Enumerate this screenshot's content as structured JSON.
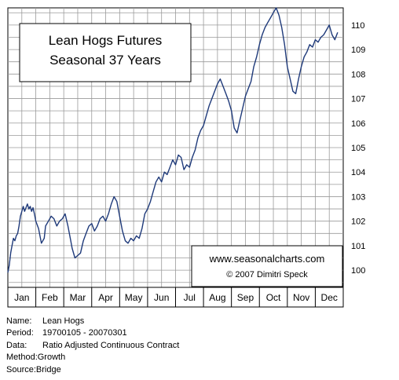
{
  "chart_data": {
    "type": "line",
    "title": [
      "Lean Hogs Futures",
      "Seasonal 37 Years"
    ],
    "watermark": [
      "www.seasonalcharts.com",
      "© 2007  Dimitri Speck"
    ],
    "x_categories": [
      "Jan",
      "Feb",
      "Mar",
      "Apr",
      "May",
      "Jun",
      "Jul",
      "Aug",
      "Sep",
      "Oct",
      "Nov",
      "Dec"
    ],
    "ylim": [
      99.3,
      110.7
    ],
    "y_ticks": [
      100,
      101,
      102,
      103,
      104,
      105,
      106,
      107,
      108,
      109,
      110
    ],
    "grid": true,
    "line_color": "#1f3a7a",
    "series": [
      {
        "x": [
          0.0,
          0.05,
          0.1,
          0.15,
          0.2,
          0.25,
          0.3,
          0.35,
          0.4,
          0.45,
          0.5,
          0.55,
          0.6,
          0.65,
          0.7,
          0.75,
          0.8,
          0.85,
          0.9,
          0.95,
          1.0,
          1.1,
          1.2,
          1.3,
          1.35,
          1.45,
          1.55,
          1.65,
          1.75,
          1.85,
          1.95,
          2.05,
          2.15,
          2.25,
          2.3,
          2.4,
          2.5,
          2.6,
          2.7,
          2.8,
          2.9,
          3.0,
          3.1,
          3.2,
          3.3,
          3.4,
          3.5,
          3.6,
          3.7,
          3.8,
          3.9,
          4.0,
          4.1,
          4.2,
          4.3,
          4.4,
          4.5,
          4.6,
          4.7,
          4.8,
          4.9,
          5.0,
          5.1,
          5.2,
          5.3,
          5.4,
          5.5,
          5.6,
          5.7,
          5.8,
          5.9,
          6.0,
          6.1,
          6.2,
          6.3,
          6.4,
          6.5,
          6.6,
          6.7,
          6.8,
          6.9,
          7.0,
          7.1,
          7.2,
          7.3,
          7.4,
          7.5,
          7.6,
          7.7,
          7.8,
          7.9,
          8.0,
          8.1,
          8.2,
          8.3,
          8.4,
          8.5,
          8.6,
          8.7,
          8.8,
          8.9,
          9.0,
          9.1,
          9.2,
          9.3,
          9.4,
          9.5,
          9.6,
          9.7,
          9.8,
          9.9,
          10.0,
          10.1,
          10.2,
          10.3,
          10.4,
          10.5,
          10.6,
          10.7,
          10.8,
          10.9,
          11.0,
          11.1,
          11.2,
          11.3,
          11.4,
          11.5,
          11.6,
          11.7,
          11.8
        ],
        "y": [
          99.9,
          100.2,
          100.7,
          101.0,
          101.3,
          101.2,
          101.4,
          101.5,
          101.8,
          102.2,
          102.4,
          102.6,
          102.4,
          102.55,
          102.7,
          102.5,
          102.6,
          102.4,
          102.55,
          102.3,
          102.0,
          101.7,
          101.1,
          101.3,
          101.8,
          102.0,
          102.2,
          102.1,
          101.8,
          102.0,
          102.1,
          102.3,
          101.8,
          101.2,
          100.9,
          100.5,
          100.6,
          100.7,
          101.2,
          101.5,
          101.8,
          101.9,
          101.6,
          101.8,
          102.1,
          102.2,
          102.0,
          102.3,
          102.7,
          103.0,
          102.8,
          102.2,
          101.6,
          101.2,
          101.1,
          101.3,
          101.2,
          101.4,
          101.3,
          101.7,
          102.3,
          102.5,
          102.8,
          103.2,
          103.6,
          103.8,
          103.6,
          104.0,
          103.9,
          104.2,
          104.5,
          104.3,
          104.7,
          104.6,
          104.1,
          104.3,
          104.2,
          104.6,
          104.9,
          105.4,
          105.7,
          105.9,
          106.3,
          106.7,
          107.0,
          107.3,
          107.6,
          107.8,
          107.5,
          107.2,
          106.9,
          106.5,
          105.8,
          105.6,
          106.1,
          106.6,
          107.1,
          107.4,
          107.7,
          108.3,
          108.7,
          109.2,
          109.6,
          109.9,
          110.1,
          110.3,
          110.5,
          110.7,
          110.4,
          109.9,
          109.2,
          108.3,
          107.8,
          107.3,
          107.2,
          107.8,
          108.3,
          108.7,
          108.9,
          109.2,
          109.1,
          109.4,
          109.3,
          109.5,
          109.6,
          109.8,
          110.0,
          109.6,
          109.4,
          109.7
        ],
        "values_are": "approximate, read from the chart"
      }
    ]
  },
  "footer": {
    "name_label": "Name:",
    "name_value": "Lean Hogs",
    "period_label": "Period:",
    "period_value": "19700105 - 20070301",
    "data_label": "Data:",
    "data_value": "Ratio Adjusted Continuous Contract",
    "method_label": "Method:",
    "method_value": "Growth",
    "source_label": "Source:",
    "source_value": "Bridge"
  }
}
